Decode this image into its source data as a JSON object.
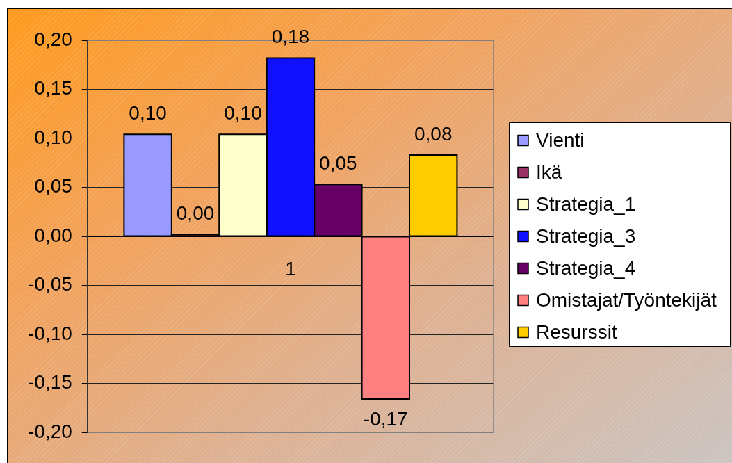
{
  "chart_data": {
    "type": "bar",
    "categories": [
      "1"
    ],
    "series": [
      {
        "name": "Vienti",
        "color": "#9999ff",
        "values": [
          0.104
        ],
        "value_labels": [
          "0,10"
        ]
      },
      {
        "name": "Ikä",
        "color": "#993366",
        "values": [
          0.002
        ],
        "value_labels": [
          "0,00"
        ]
      },
      {
        "name": "Strategia_1",
        "color": "#ffffcc",
        "values": [
          0.104
        ],
        "value_labels": [
          "0,10"
        ]
      },
      {
        "name": "Strategia_3",
        "color": "#1010ff",
        "values": [
          0.182
        ],
        "value_labels": [
          "0,18"
        ]
      },
      {
        "name": "Strategia_4",
        "color": "#660066",
        "values": [
          0.053
        ],
        "value_labels": [
          "0,05"
        ]
      },
      {
        "name": "Omistajat/Työntekijät",
        "color": "#ff8080",
        "values": [
          -0.166
        ],
        "value_labels": [
          "-0,17"
        ]
      },
      {
        "name": "Resurssit",
        "color": "#ffcc00",
        "values": [
          0.083
        ],
        "value_labels": [
          "0,08"
        ]
      }
    ],
    "ylim": [
      -0.2,
      0.2
    ],
    "yticks": [
      {
        "value": -0.2,
        "label": "-0,20"
      },
      {
        "value": -0.15,
        "label": "-0,15"
      },
      {
        "value": -0.1,
        "label": "-0,10"
      },
      {
        "value": -0.05,
        "label": "-0,05"
      },
      {
        "value": 0,
        "label": "0,00"
      },
      {
        "value": 0.05,
        "label": "0,05"
      },
      {
        "value": 0.1,
        "label": "0,10"
      },
      {
        "value": 0.15,
        "label": "0,15"
      },
      {
        "value": 0.2,
        "label": "0,20"
      }
    ],
    "grid": "y",
    "legend": "right"
  }
}
